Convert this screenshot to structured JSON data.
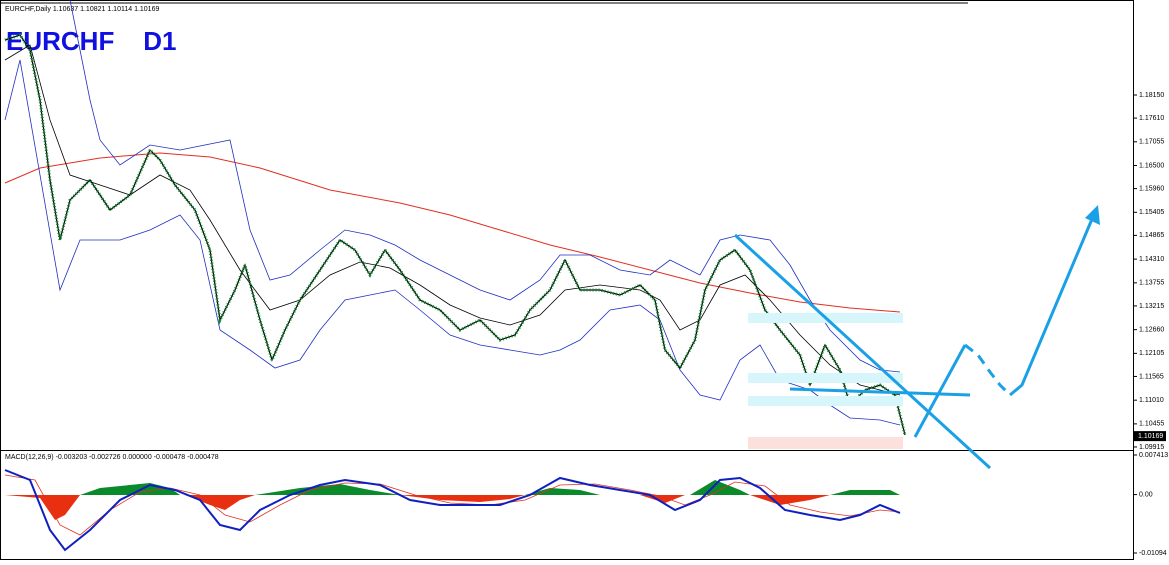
{
  "header": {
    "symbol_info": "EURCHF,Daily  1.10637 1.10821 1.10114 1.10169"
  },
  "chart_title": "EURCHF    D1",
  "price_axis": {
    "ticks": [
      {
        "value": 1.1815,
        "label": "1.18150"
      },
      {
        "value": 1.1761,
        "label": "1.17610"
      },
      {
        "value": 1.17055,
        "label": "1.17055"
      },
      {
        "value": 1.165,
        "label": "1.16500"
      },
      {
        "value": 1.1596,
        "label": "1.15960"
      },
      {
        "value": 1.15405,
        "label": "1.15405"
      },
      {
        "value": 1.14865,
        "label": "1.14865"
      },
      {
        "value": 1.1431,
        "label": "1.14310"
      },
      {
        "value": 1.13755,
        "label": "1.13755"
      },
      {
        "value": 1.13215,
        "label": "1.13215"
      },
      {
        "value": 1.1266,
        "label": "1.12660"
      },
      {
        "value": 1.12105,
        "label": "1.12105"
      },
      {
        "value": 1.11565,
        "label": "1.11565"
      },
      {
        "value": 1.1101,
        "label": "1.11010"
      },
      {
        "value": 1.10455,
        "label": "1.10455"
      },
      {
        "value": 1.09915,
        "label": "1.09915"
      }
    ],
    "current": 1.10169
  },
  "macd": {
    "label": "MACD(12,26,9) -0.003203 -0.002726 0.000000 -0.000478 -0.000478",
    "ticks": [
      0.007413,
      {
        "value": 0,
        "label": "0.00"
      },
      -0.01094
    ]
  }
}
